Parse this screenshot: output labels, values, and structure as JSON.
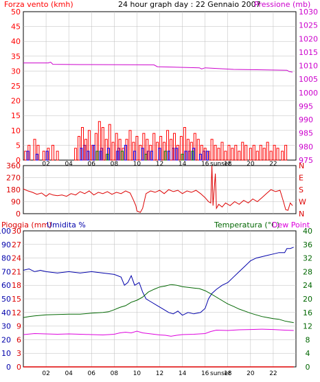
{
  "title": "24 hour graph day : 22 Gennaio 2007",
  "colors": {
    "wind": "#ff0000",
    "gust": "#ff0000",
    "wind_blue": "#0000ff",
    "wind_green": "#008000",
    "wind_purple": "#800080",
    "pressure": "#cc00cc",
    "direction": "#dd0000",
    "rain": "#dd0000",
    "humidity": "#0000aa",
    "temperature": "#006600",
    "dewpoint": "#dd00dd",
    "frame": "#000000",
    "grid": "#bbbbbb"
  },
  "x_ticks": [
    "02",
    "04",
    "06",
    "08",
    "10",
    "12",
    "14",
    "16",
    "18",
    "20",
    "22"
  ],
  "sunset_label": "sunset",
  "chart_data": [
    {
      "type": "bar",
      "name": "wind-pressure",
      "title": "24 hour graph day : 22 Gennaio 2007",
      "ylabel_left": "Forza vento (kmh)",
      "ylabel_right": "Pressione (mb)",
      "y_left_ticks": [
        "0",
        "5",
        "10",
        "15",
        "20",
        "25",
        "30",
        "35",
        "40",
        "45",
        "50"
      ],
      "y_right_ticks": [
        "975",
        "980",
        "985",
        "990",
        "995",
        "1000",
        "1005",
        "1010",
        "1015",
        "1020",
        "1025",
        "1030"
      ],
      "ylim_left": [
        0,
        50
      ],
      "ylim_right": [
        975,
        1030
      ],
      "xlim": [
        0,
        24
      ],
      "wind_gust": [
        [
          0.2,
          3
        ],
        [
          0.5,
          5
        ],
        [
          1.0,
          7
        ],
        [
          1.3,
          5
        ],
        [
          1.8,
          3
        ],
        [
          2.2,
          4
        ],
        [
          2.6,
          5
        ],
        [
          3.0,
          3
        ],
        [
          4.6,
          4
        ],
        [
          4.9,
          8
        ],
        [
          5.2,
          11
        ],
        [
          5.5,
          7
        ],
        [
          5.8,
          10
        ],
        [
          6.1,
          5
        ],
        [
          6.4,
          9
        ],
        [
          6.7,
          13
        ],
        [
          7.0,
          11
        ],
        [
          7.3,
          7
        ],
        [
          7.6,
          12
        ],
        [
          7.9,
          6
        ],
        [
          8.2,
          9
        ],
        [
          8.5,
          7
        ],
        [
          8.8,
          4
        ],
        [
          9.1,
          7
        ],
        [
          9.4,
          10
        ],
        [
          9.7,
          6
        ],
        [
          10.0,
          8
        ],
        [
          10.3,
          5
        ],
        [
          10.6,
          9
        ],
        [
          10.9,
          7
        ],
        [
          11.2,
          5
        ],
        [
          11.5,
          9
        ],
        [
          11.8,
          6
        ],
        [
          12.1,
          8
        ],
        [
          12.4,
          6
        ],
        [
          12.7,
          10
        ],
        [
          13.0,
          7
        ],
        [
          13.3,
          9
        ],
        [
          13.6,
          5
        ],
        [
          13.9,
          8
        ],
        [
          14.2,
          11
        ],
        [
          14.5,
          7
        ],
        [
          14.8,
          6
        ],
        [
          15.1,
          9
        ],
        [
          15.4,
          7
        ],
        [
          15.7,
          5
        ],
        [
          16.0,
          4
        ],
        [
          16.3,
          3
        ],
        [
          16.6,
          7
        ],
        [
          16.9,
          5
        ],
        [
          17.2,
          4
        ],
        [
          17.5,
          6
        ],
        [
          17.8,
          3
        ],
        [
          18.1,
          5
        ],
        [
          18.4,
          4
        ],
        [
          18.7,
          5
        ],
        [
          19.0,
          3
        ],
        [
          19.3,
          6
        ],
        [
          19.6,
          5
        ],
        [
          20.0,
          4
        ],
        [
          20.3,
          5
        ],
        [
          20.6,
          3
        ],
        [
          20.9,
          5
        ],
        [
          21.2,
          4
        ],
        [
          21.5,
          6
        ],
        [
          21.8,
          3
        ],
        [
          22.1,
          5
        ],
        [
          22.4,
          4
        ],
        [
          22.8,
          3
        ],
        [
          23.1,
          5
        ]
      ],
      "wind_speed_blue": [
        [
          0.4,
          3
        ],
        [
          1.2,
          2
        ],
        [
          2.1,
          3
        ],
        [
          5.1,
          4
        ],
        [
          5.7,
          3
        ],
        [
          6.2,
          5
        ],
        [
          6.8,
          3
        ],
        [
          7.5,
          4
        ],
        [
          8.3,
          3
        ],
        [
          9.0,
          5
        ],
        [
          9.8,
          3
        ],
        [
          10.5,
          4
        ],
        [
          11.3,
          3
        ],
        [
          12.0,
          4
        ],
        [
          12.8,
          3
        ],
        [
          13.5,
          4
        ],
        [
          14.3,
          3
        ],
        [
          15.0,
          4
        ],
        [
          15.6,
          2
        ],
        [
          16.2,
          3
        ]
      ],
      "wind_speed_green": [
        [
          6.5,
          3
        ],
        [
          7.4,
          2
        ],
        [
          8.7,
          3
        ],
        [
          10.8,
          2
        ],
        [
          12.5,
          3
        ],
        [
          14.0,
          2
        ],
        [
          14.9,
          3
        ]
      ],
      "wind_speed_purple": [
        [
          5.4,
          5
        ],
        [
          6.9,
          4
        ],
        [
          8.4,
          4
        ],
        [
          11.0,
          3
        ],
        [
          13.2,
          4
        ],
        [
          14.6,
          3
        ],
        [
          15.9,
          3
        ]
      ],
      "pressure": [
        [
          0.0,
          1011.0
        ],
        [
          2.2,
          1011.0
        ],
        [
          2.4,
          1011.3
        ],
        [
          2.6,
          1010.5
        ],
        [
          5.0,
          1010.4
        ],
        [
          11.5,
          1010.3
        ],
        [
          11.8,
          1009.6
        ],
        [
          15.5,
          1009.2
        ],
        [
          15.7,
          1008.8
        ],
        [
          16.0,
          1009.2
        ],
        [
          18.5,
          1008.6
        ],
        [
          23.2,
          1008.3
        ],
        [
          23.4,
          1007.8
        ],
        [
          23.7,
          1007.6
        ]
      ]
    },
    {
      "type": "line",
      "name": "wind-direction",
      "y_left_ticks": [
        "0",
        "90",
        "180",
        "270",
        "360"
      ],
      "y_right_labels": [
        "N",
        "W",
        "S",
        "E",
        "N"
      ],
      "ylim": [
        0,
        360
      ],
      "xlim": [
        0,
        24
      ],
      "direction": [
        [
          0.0,
          185
        ],
        [
          0.4,
          170
        ],
        [
          0.8,
          160
        ],
        [
          1.2,
          145
        ],
        [
          1.6,
          155
        ],
        [
          2.0,
          130
        ],
        [
          2.3,
          150
        ],
        [
          2.6,
          140
        ],
        [
          3.0,
          135
        ],
        [
          3.4,
          140
        ],
        [
          3.8,
          130
        ],
        [
          4.2,
          150
        ],
        [
          4.6,
          140
        ],
        [
          5.0,
          165
        ],
        [
          5.4,
          150
        ],
        [
          5.8,
          170
        ],
        [
          6.2,
          140
        ],
        [
          6.6,
          160
        ],
        [
          7.0,
          150
        ],
        [
          7.4,
          165
        ],
        [
          7.8,
          145
        ],
        [
          8.2,
          160
        ],
        [
          8.6,
          150
        ],
        [
          9.0,
          170
        ],
        [
          9.4,
          155
        ],
        [
          9.7,
          100
        ],
        [
          9.9,
          60
        ],
        [
          10.0,
          20
        ],
        [
          10.3,
          10
        ],
        [
          10.5,
          40
        ],
        [
          10.8,
          150
        ],
        [
          11.2,
          170
        ],
        [
          11.6,
          160
        ],
        [
          12.0,
          175
        ],
        [
          12.4,
          150
        ],
        [
          12.8,
          180
        ],
        [
          13.2,
          165
        ],
        [
          13.6,
          175
        ],
        [
          14.0,
          150
        ],
        [
          14.4,
          170
        ],
        [
          14.8,
          160
        ],
        [
          15.2,
          175
        ],
        [
          15.6,
          150
        ],
        [
          16.0,
          120
        ],
        [
          16.3,
          90
        ],
        [
          16.5,
          80
        ],
        [
          16.6,
          360
        ],
        [
          16.7,
          60
        ],
        [
          16.9,
          300
        ],
        [
          17.0,
          40
        ],
        [
          17.2,
          70
        ],
        [
          17.5,
          50
        ],
        [
          17.8,
          80
        ],
        [
          18.2,
          60
        ],
        [
          18.6,
          90
        ],
        [
          19.0,
          70
        ],
        [
          19.4,
          100
        ],
        [
          19.8,
          80
        ],
        [
          20.2,
          110
        ],
        [
          20.6,
          90
        ],
        [
          21.0,
          120
        ],
        [
          21.4,
          150
        ],
        [
          21.8,
          180
        ],
        [
          22.2,
          165
        ],
        [
          22.6,
          175
        ],
        [
          22.9,
          90
        ],
        [
          23.1,
          30
        ],
        [
          23.3,
          25
        ],
        [
          23.5,
          80
        ],
        [
          23.7,
          60
        ]
      ]
    },
    {
      "type": "line",
      "name": "temp-humidity",
      "ylabel_rain": "Pioggia (mm)",
      "ylabel_humidity": "Umidita %",
      "ylabel_temp": "Temperatura (°C)",
      "ylabel_dew": "Dew Point",
      "rain_ticks": [
        "0",
        "3",
        "6",
        "9",
        "12",
        "15",
        "18",
        "21",
        "24",
        "27",
        "30"
      ],
      "humidity_ticks": [
        "0",
        "10",
        "20",
        "30",
        "40",
        "50",
        "60",
        "70",
        "80",
        "90",
        "100"
      ],
      "temp_ticks": [
        "0",
        "4",
        "8",
        "12",
        "16",
        "20",
        "24",
        "28",
        "32",
        "36",
        "40"
      ],
      "ylim_temp": [
        0,
        40
      ],
      "ylim_humidity": [
        0,
        100
      ],
      "ylim_rain": [
        0,
        30
      ],
      "xlim": [
        0,
        24
      ],
      "humidity": [
        [
          0.0,
          71
        ],
        [
          0.5,
          72
        ],
        [
          1.0,
          70
        ],
        [
          1.5,
          71
        ],
        [
          2.0,
          70
        ],
        [
          3.0,
          69
        ],
        [
          4.0,
          70
        ],
        [
          5.0,
          69
        ],
        [
          6.0,
          70
        ],
        [
          7.0,
          69
        ],
        [
          8.0,
          68
        ],
        [
          8.6,
          66
        ],
        [
          8.9,
          60
        ],
        [
          9.2,
          62
        ],
        [
          9.5,
          67
        ],
        [
          9.8,
          60
        ],
        [
          10.2,
          62
        ],
        [
          10.5,
          55
        ],
        [
          10.8,
          50
        ],
        [
          11.2,
          48
        ],
        [
          11.8,
          45
        ],
        [
          12.4,
          42
        ],
        [
          12.8,
          40
        ],
        [
          13.2,
          39
        ],
        [
          13.6,
          41
        ],
        [
          14.0,
          38
        ],
        [
          14.5,
          40
        ],
        [
          15.0,
          39
        ],
        [
          15.6,
          40
        ],
        [
          16.0,
          43
        ],
        [
          16.3,
          50
        ],
        [
          16.6,
          54
        ],
        [
          17.0,
          57
        ],
        [
          17.5,
          60
        ],
        [
          18.0,
          62
        ],
        [
          18.5,
          66
        ],
        [
          19.0,
          70
        ],
        [
          19.5,
          74
        ],
        [
          20.0,
          78
        ],
        [
          20.5,
          80
        ],
        [
          21.0,
          81
        ],
        [
          21.5,
          82
        ],
        [
          22.0,
          83
        ],
        [
          22.5,
          84
        ],
        [
          23.0,
          84
        ],
        [
          23.2,
          87
        ],
        [
          23.5,
          87
        ],
        [
          23.8,
          88
        ]
      ],
      "temperature": [
        [
          0.0,
          14.5
        ],
        [
          0.5,
          14.8
        ],
        [
          1.0,
          15.0
        ],
        [
          2.0,
          15.3
        ],
        [
          3.0,
          15.4
        ],
        [
          4.0,
          15.5
        ],
        [
          5.0,
          15.5
        ],
        [
          6.0,
          15.8
        ],
        [
          7.0,
          16.0
        ],
        [
          7.5,
          16.2
        ],
        [
          8.0,
          16.8
        ],
        [
          8.5,
          17.5
        ],
        [
          9.0,
          18.0
        ],
        [
          9.5,
          19.0
        ],
        [
          10.0,
          19.6
        ],
        [
          10.5,
          20.5
        ],
        [
          11.0,
          22.0
        ],
        [
          11.5,
          22.8
        ],
        [
          12.0,
          23.5
        ],
        [
          12.5,
          23.8
        ],
        [
          13.0,
          24.2
        ],
        [
          13.5,
          24.0
        ],
        [
          14.0,
          23.6
        ],
        [
          14.5,
          23.4
        ],
        [
          15.0,
          23.2
        ],
        [
          15.5,
          23.0
        ],
        [
          16.0,
          22.4
        ],
        [
          16.5,
          21.5
        ],
        [
          17.0,
          20.5
        ],
        [
          17.5,
          19.5
        ],
        [
          18.0,
          18.5
        ],
        [
          18.5,
          17.8
        ],
        [
          19.0,
          17.0
        ],
        [
          19.5,
          16.4
        ],
        [
          20.0,
          15.8
        ],
        [
          20.5,
          15.3
        ],
        [
          21.0,
          14.8
        ],
        [
          21.5,
          14.5
        ],
        [
          22.0,
          14.2
        ],
        [
          22.5,
          14.0
        ],
        [
          23.0,
          13.5
        ],
        [
          23.5,
          13.2
        ],
        [
          23.8,
          13.0
        ]
      ],
      "dewpoint": [
        [
          0.0,
          9.5
        ],
        [
          1.0,
          9.8
        ],
        [
          2.0,
          9.7
        ],
        [
          3.0,
          9.6
        ],
        [
          4.0,
          9.7
        ],
        [
          5.0,
          9.6
        ],
        [
          6.0,
          9.5
        ],
        [
          7.0,
          9.4
        ],
        [
          8.0,
          9.6
        ],
        [
          8.5,
          10.0
        ],
        [
          9.0,
          10.2
        ],
        [
          9.5,
          10.0
        ],
        [
          10.0,
          10.5
        ],
        [
          10.5,
          10.0
        ],
        [
          11.0,
          9.8
        ],
        [
          11.5,
          9.6
        ],
        [
          12.0,
          9.4
        ],
        [
          12.5,
          9.3
        ],
        [
          13.0,
          9.0
        ],
        [
          13.5,
          9.3
        ],
        [
          14.0,
          9.5
        ],
        [
          15.0,
          9.6
        ],
        [
          16.0,
          9.8
        ],
        [
          16.5,
          10.4
        ],
        [
          17.0,
          10.8
        ],
        [
          18.0,
          10.7
        ],
        [
          19.0,
          10.9
        ],
        [
          20.0,
          11.0
        ],
        [
          21.0,
          11.1
        ],
        [
          22.0,
          11.0
        ],
        [
          23.0,
          10.8
        ],
        [
          23.8,
          10.7
        ]
      ],
      "rain": [
        [
          0.0,
          0
        ],
        [
          23.8,
          0
        ]
      ]
    }
  ]
}
